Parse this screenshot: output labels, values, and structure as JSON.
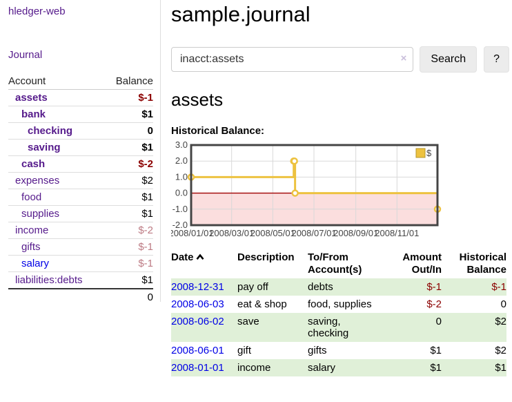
{
  "sidebar": {
    "brand": "hledger-web",
    "nav_journal": "Journal",
    "accounts": {
      "headers": {
        "account": "Account",
        "balance": "Balance"
      },
      "rows": [
        {
          "name": "assets",
          "depth": 1,
          "bold": true,
          "link": "purple",
          "balance": "$-1",
          "bstyle": "neg-strong"
        },
        {
          "name": "bank",
          "depth": 2,
          "bold": true,
          "link": "purple",
          "balance": "$1",
          "bstyle": "pos-strong"
        },
        {
          "name": "checking",
          "depth": 3,
          "bold": true,
          "link": "purple",
          "balance": "0",
          "bstyle": "pos-strong"
        },
        {
          "name": "saving",
          "depth": 3,
          "bold": true,
          "link": "purple",
          "balance": "$1",
          "bstyle": "pos-strong"
        },
        {
          "name": "cash",
          "depth": 2,
          "bold": true,
          "link": "purple",
          "balance": "$-2",
          "bstyle": "neg-strong"
        },
        {
          "name": "expenses",
          "depth": 1,
          "bold": false,
          "link": "purple",
          "balance": "$2",
          "bstyle": "pos"
        },
        {
          "name": "food",
          "depth": 2,
          "bold": false,
          "link": "purple",
          "balance": "$1",
          "bstyle": "pos"
        },
        {
          "name": "supplies",
          "depth": 2,
          "bold": false,
          "link": "purple",
          "balance": "$1",
          "bstyle": "pos"
        },
        {
          "name": "income",
          "depth": 1,
          "bold": false,
          "link": "purple",
          "balance": "$-2",
          "bstyle": "neg-faint"
        },
        {
          "name": "gifts",
          "depth": 2,
          "bold": false,
          "link": "purple",
          "balance": "$-1",
          "bstyle": "neg-faint"
        },
        {
          "name": "salary",
          "depth": 2,
          "bold": false,
          "link": "blue",
          "balance": "$-1",
          "bstyle": "neg-faint"
        },
        {
          "name": "liabilities:debts",
          "depth": 1,
          "bold": false,
          "link": "purple",
          "balance": "$1",
          "bstyle": "pos"
        }
      ],
      "total": "0"
    }
  },
  "main": {
    "title": "sample.journal",
    "search": {
      "value": "inacct:assets",
      "clear_icon": "×",
      "button": "Search",
      "help": "?"
    },
    "account_heading": "assets",
    "chart_label": "Historical Balance:",
    "register": {
      "headers": {
        "date": "Date",
        "description": "Description",
        "accounts": [
          "To/From",
          "Account(s)"
        ],
        "amount": [
          "Amount",
          "Out/In"
        ],
        "balance": [
          "Historical",
          "Balance"
        ]
      },
      "rows": [
        {
          "date": "2008-12-31",
          "description": "pay off",
          "accounts": [
            "debts"
          ],
          "amount": "$-1",
          "amount_neg": true,
          "balance": "$-1",
          "balance_neg": true
        },
        {
          "date": "2008-06-03",
          "description": "eat & shop",
          "accounts": [
            "food, supplies"
          ],
          "amount": "$-2",
          "amount_neg": true,
          "balance": "0",
          "balance_neg": false
        },
        {
          "date": "2008-06-02",
          "description": "save",
          "accounts": [
            "saving,",
            "checking"
          ],
          "amount": "0",
          "amount_neg": false,
          "balance": "$2",
          "balance_neg": false
        },
        {
          "date": "2008-06-01",
          "description": "gift",
          "accounts": [
            "gifts"
          ],
          "amount": "$1",
          "amount_neg": false,
          "balance": "$2",
          "balance_neg": false
        },
        {
          "date": "2008-01-01",
          "description": "income",
          "accounts": [
            "salary"
          ],
          "amount": "$1",
          "amount_neg": false,
          "balance": "$1",
          "balance_neg": false
        }
      ]
    }
  },
  "chart_data": {
    "type": "line",
    "title": "Historical Balance",
    "style": "step",
    "series": [
      {
        "name": "$",
        "color": "#EDC240",
        "points": [
          [
            "2008-01-01",
            1
          ],
          [
            "2008-06-01",
            2
          ],
          [
            "2008-06-02",
            2
          ],
          [
            "2008-06-03",
            0
          ],
          [
            "2008-12-31",
            -1
          ]
        ]
      }
    ],
    "x_start": "2008-01-01",
    "x_end": "2008-12-31",
    "x_ticks": [
      "2008/01/01",
      "2008/03/01",
      "2008/05/01",
      "2008/07/01",
      "2008/09/01",
      "2008/11/01"
    ],
    "y_ticks": [
      "3.0",
      "2.0",
      "1.0",
      "0.0",
      "-1.0",
      "-2.0"
    ],
    "ylim": [
      -2,
      3
    ],
    "grid": true,
    "legend_position": "top-right",
    "negative_region_color": "#fbdede",
    "zero_line_color": "#a00000",
    "grid_color": "#d8d8d8",
    "border_color": "#444444",
    "tick_label_color": "#444444"
  }
}
